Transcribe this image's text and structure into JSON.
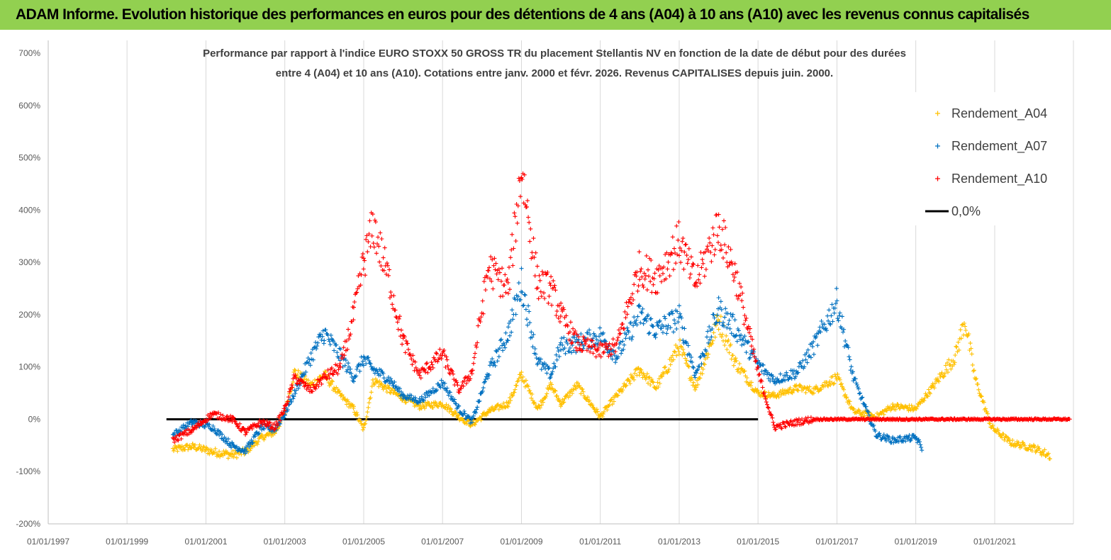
{
  "banner": {
    "title": "ADAM Informe. Evolution historique des performances en euros pour des détentions de 4 ans (A04) à 10 ans (A10) avec les revenus connus capitalisés"
  },
  "colors": {
    "banner_bg": "#92d050",
    "a04": "#ffc000",
    "a07": "#0070c0",
    "a10": "#ff0000",
    "zero_line": "#000000",
    "grid": "#d9d9d9"
  },
  "chart_data": {
    "type": "scatter",
    "title_line1": "Performance par rapport à l'indice EURO STOXX 50 GROSS TR  du placement Stellantis NV en fonction de la date de début pour des durées",
    "title_line2": "entre 4 (A04) et 10 ans (A10). Cotations entre janv. 2000 et févr. 2026. Revenus CAPITALISES depuis juin. 2000.",
    "x_axis": {
      "type": "date",
      "range": [
        "1997-01-01",
        "2022-12-31"
      ],
      "tick_labels": [
        "01/01/1997",
        "01/01/1999",
        "01/01/2001",
        "01/01/2003",
        "01/01/2005",
        "01/01/2007",
        "01/01/2009",
        "01/01/2011",
        "01/01/2013",
        "01/01/2015",
        "01/01/2017",
        "01/01/2019",
        "01/01/2021"
      ]
    },
    "y_axis": {
      "unit": "%",
      "range": [
        -200,
        700
      ],
      "tick_labels": [
        "700%",
        "600%",
        "500%",
        "400%",
        "300%",
        "200%",
        "100%",
        "0%",
        "-100%",
        "-200%"
      ]
    },
    "grid": "vertical",
    "legend_position": "top-right",
    "series": [
      {
        "name": "Rendement_A04",
        "color": "#ffc000",
        "points": [
          [
            "2000-03-01",
            -58
          ],
          [
            "2000-09-01",
            -52
          ],
          [
            "2001-03-01",
            -62
          ],
          [
            "2001-09-01",
            -68
          ],
          [
            "2002-01-01",
            -62
          ],
          [
            "2002-06-01",
            -35
          ],
          [
            "2002-10-01",
            -25
          ],
          [
            "2003-01-01",
            10
          ],
          [
            "2003-04-01",
            90
          ],
          [
            "2003-09-01",
            65
          ],
          [
            "2004-01-01",
            85
          ],
          [
            "2004-06-01",
            45
          ],
          [
            "2004-10-01",
            20
          ],
          [
            "2005-01-01",
            -20
          ],
          [
            "2005-04-01",
            75
          ],
          [
            "2005-09-01",
            55
          ],
          [
            "2006-01-01",
            40
          ],
          [
            "2006-06-01",
            25
          ],
          [
            "2007-01-01",
            30
          ],
          [
            "2007-06-01",
            5
          ],
          [
            "2007-10-01",
            -10
          ],
          [
            "2008-03-01",
            15
          ],
          [
            "2008-09-01",
            30
          ],
          [
            "2009-01-01",
            85
          ],
          [
            "2009-06-01",
            20
          ],
          [
            "2009-10-01",
            65
          ],
          [
            "2010-01-01",
            30
          ],
          [
            "2010-06-01",
            65
          ],
          [
            "2011-01-01",
            5
          ],
          [
            "2011-06-01",
            45
          ],
          [
            "2012-01-01",
            95
          ],
          [
            "2012-06-01",
            60
          ],
          [
            "2013-01-01",
            140
          ],
          [
            "2013-06-01",
            60
          ],
          [
            "2014-01-01",
            190
          ],
          [
            "2014-06-01",
            110
          ],
          [
            "2015-01-01",
            50
          ],
          [
            "2015-06-01",
            45
          ],
          [
            "2016-01-01",
            60
          ],
          [
            "2016-06-01",
            55
          ],
          [
            "2017-01-01",
            80
          ],
          [
            "2017-06-01",
            15
          ],
          [
            "2018-01-01",
            5
          ],
          [
            "2018-06-01",
            25
          ],
          [
            "2019-01-01",
            20
          ],
          [
            "2019-06-01",
            60
          ],
          [
            "2020-01-01",
            120
          ],
          [
            "2020-04-01",
            190
          ],
          [
            "2020-07-01",
            80
          ],
          [
            "2020-12-01",
            -15
          ],
          [
            "2021-06-01",
            -45
          ],
          [
            "2022-01-01",
            -55
          ],
          [
            "2022-06-01",
            -70
          ]
        ]
      },
      {
        "name": "Rendement_A07",
        "color": "#0070c0",
        "points": [
          [
            "2000-03-01",
            -30
          ],
          [
            "2000-09-01",
            -5
          ],
          [
            "2001-03-01",
            -15
          ],
          [
            "2001-09-01",
            -50
          ],
          [
            "2002-01-01",
            -60
          ],
          [
            "2002-06-01",
            -15
          ],
          [
            "2002-10-01",
            -20
          ],
          [
            "2003-01-01",
            10
          ],
          [
            "2003-04-01",
            50
          ],
          [
            "2003-09-01",
            120
          ],
          [
            "2004-01-01",
            165
          ],
          [
            "2004-06-01",
            120
          ],
          [
            "2004-10-01",
            80
          ],
          [
            "2005-01-01",
            115
          ],
          [
            "2005-04-01",
            95
          ],
          [
            "2005-09-01",
            75
          ],
          [
            "2006-01-01",
            45
          ],
          [
            "2006-06-01",
            35
          ],
          [
            "2007-01-01",
            70
          ],
          [
            "2007-06-01",
            20
          ],
          [
            "2007-10-01",
            -5
          ],
          [
            "2008-03-01",
            90
          ],
          [
            "2008-09-01",
            165
          ],
          [
            "2009-01-01",
            260
          ],
          [
            "2009-06-01",
            110
          ],
          [
            "2009-10-01",
            85
          ],
          [
            "2010-01-01",
            140
          ],
          [
            "2010-06-01",
            145
          ],
          [
            "2011-01-01",
            160
          ],
          [
            "2011-06-01",
            120
          ],
          [
            "2012-01-01",
            200
          ],
          [
            "2012-06-01",
            170
          ],
          [
            "2013-01-01",
            195
          ],
          [
            "2013-06-01",
            85
          ],
          [
            "2014-01-01",
            210
          ],
          [
            "2014-06-01",
            175
          ],
          [
            "2015-01-01",
            105
          ],
          [
            "2015-06-01",
            75
          ],
          [
            "2016-01-01",
            90
          ],
          [
            "2016-06-01",
            140
          ],
          [
            "2017-01-01",
            225
          ],
          [
            "2017-06-01",
            80
          ],
          [
            "2018-01-01",
            -30
          ],
          [
            "2018-06-01",
            -40
          ],
          [
            "2019-01-01",
            -35
          ],
          [
            "2019-03-01",
            -55
          ]
        ]
      },
      {
        "name": "Rendement_A10",
        "color": "#ff0000",
        "points": [
          [
            "2000-03-01",
            -40
          ],
          [
            "2000-09-01",
            -20
          ],
          [
            "2001-03-01",
            10
          ],
          [
            "2001-09-01",
            0
          ],
          [
            "2002-01-01",
            -25
          ],
          [
            "2002-06-01",
            -5
          ],
          [
            "2002-10-01",
            -15
          ],
          [
            "2003-01-01",
            20
          ],
          [
            "2003-04-01",
            80
          ],
          [
            "2003-09-01",
            55
          ],
          [
            "2004-01-01",
            80
          ],
          [
            "2004-06-01",
            100
          ],
          [
            "2004-10-01",
            200
          ],
          [
            "2005-01-01",
            300
          ],
          [
            "2005-04-01",
            370
          ],
          [
            "2005-09-01",
            260
          ],
          [
            "2006-01-01",
            150
          ],
          [
            "2006-06-01",
            85
          ],
          [
            "2007-01-01",
            125
          ],
          [
            "2007-06-01",
            55
          ],
          [
            "2007-10-01",
            90
          ],
          [
            "2008-03-01",
            290
          ],
          [
            "2008-09-01",
            250
          ],
          [
            "2009-01-01",
            480
          ],
          [
            "2009-06-01",
            260
          ],
          [
            "2009-10-01",
            250
          ],
          [
            "2010-01-01",
            200
          ],
          [
            "2010-06-01",
            145
          ],
          [
            "2011-01-01",
            130
          ],
          [
            "2011-06-01",
            140
          ],
          [
            "2012-01-01",
            290
          ],
          [
            "2012-06-01",
            270
          ],
          [
            "2013-01-01",
            340
          ],
          [
            "2013-06-01",
            260
          ],
          [
            "2014-01-01",
            370
          ],
          [
            "2014-06-01",
            280
          ],
          [
            "2015-01-01",
            90
          ],
          [
            "2015-06-01",
            -15
          ],
          [
            "2016-01-01",
            -5
          ],
          [
            "2016-06-01",
            0
          ],
          [
            "2017-01-01",
            0
          ],
          [
            "2017-06-01",
            0
          ],
          [
            "2018-01-01",
            0
          ],
          [
            "2018-06-01",
            0
          ],
          [
            "2019-01-01",
            0
          ],
          [
            "2019-06-01",
            0
          ],
          [
            "2020-01-01",
            0
          ],
          [
            "2020-06-01",
            0
          ],
          [
            "2021-01-01",
            0
          ],
          [
            "2021-06-01",
            0
          ],
          [
            "2022-01-01",
            0
          ],
          [
            "2022-12-01",
            0
          ]
        ]
      }
    ],
    "reference_line": {
      "name": "0,0%",
      "y": 0,
      "from": "2000-01-01",
      "to": "2015-01-01"
    },
    "legend": [
      "Rendement_A04",
      "Rendement_A07",
      "Rendement_A10",
      "0,0%"
    ]
  }
}
